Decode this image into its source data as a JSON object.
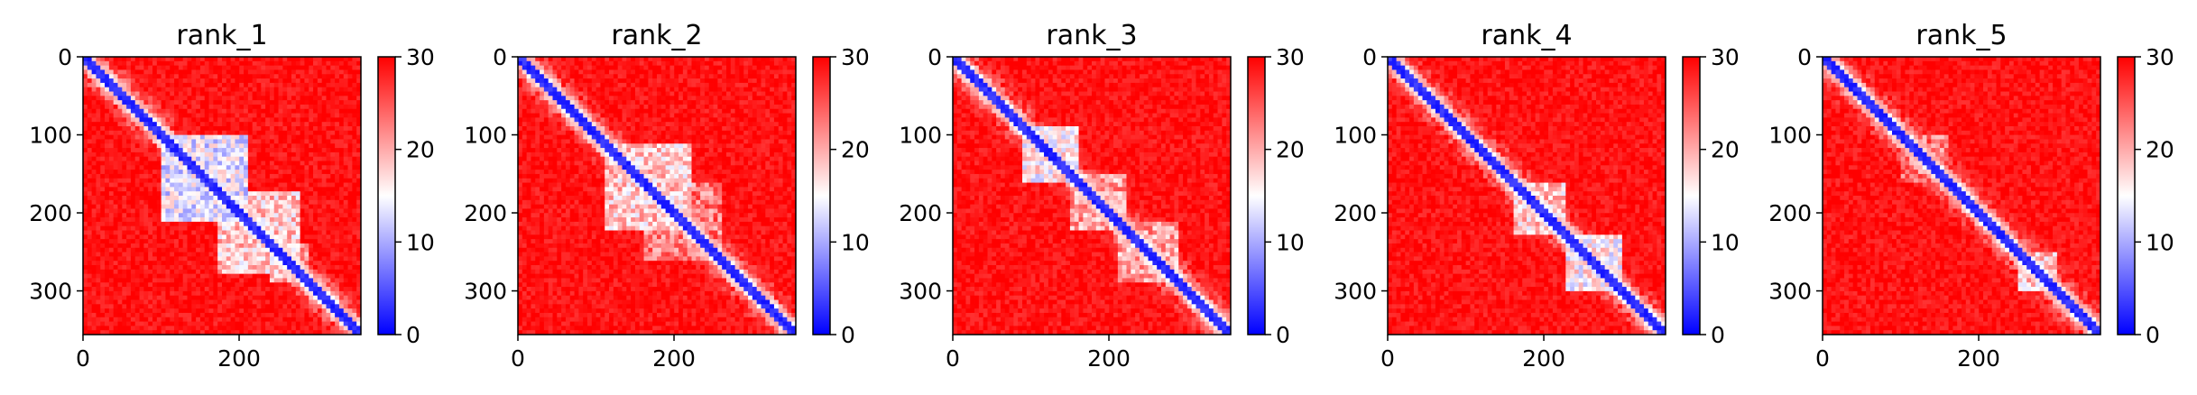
{
  "chart_data": [
    {
      "type": "heatmap",
      "title": "rank_1",
      "x_ticks": [
        0,
        200
      ],
      "y_ticks": [
        0,
        100,
        200,
        300
      ],
      "x_range": [
        0,
        356
      ],
      "y_range": [
        0,
        356
      ],
      "colorbar": {
        "range": [
          0,
          30
        ],
        "ticks": [
          0,
          10,
          20,
          30
        ],
        "colors": [
          "#0000ff",
          "#ffffff",
          "#ff0000"
        ]
      },
      "blue_regions": [
        [
          100,
          210,
          0.9
        ],
        [
          170,
          280,
          0.7
        ],
        [
          240,
          290,
          0.6
        ]
      ]
    },
    {
      "type": "heatmap",
      "title": "rank_2",
      "x_ticks": [
        0,
        200
      ],
      "y_ticks": [
        0,
        100,
        200,
        300
      ],
      "x_range": [
        0,
        356
      ],
      "y_range": [
        0,
        356
      ],
      "colorbar": {
        "range": [
          0,
          30
        ],
        "ticks": [
          0,
          10,
          20,
          30
        ],
        "colors": [
          "#0000ff",
          "#ffffff",
          "#ff0000"
        ]
      },
      "blue_regions": [
        [
          110,
          220,
          0.7
        ],
        [
          160,
          260,
          0.5
        ]
      ]
    },
    {
      "type": "heatmap",
      "title": "rank_3",
      "x_ticks": [
        0,
        200
      ],
      "y_ticks": [
        0,
        100,
        200,
        300
      ],
      "x_range": [
        0,
        356
      ],
      "y_range": [
        0,
        356
      ],
      "colorbar": {
        "range": [
          0,
          30
        ],
        "ticks": [
          0,
          10,
          20,
          30
        ],
        "colors": [
          "#0000ff",
          "#ffffff",
          "#ff0000"
        ]
      },
      "blue_regions": [
        [
          90,
          160,
          0.8
        ],
        [
          150,
          220,
          0.6
        ],
        [
          210,
          290,
          0.6
        ]
      ]
    },
    {
      "type": "heatmap",
      "title": "rank_4",
      "x_ticks": [
        0,
        200
      ],
      "y_ticks": [
        0,
        100,
        200,
        300
      ],
      "x_range": [
        0,
        356
      ],
      "y_range": [
        0,
        356
      ],
      "colorbar": {
        "range": [
          0,
          30
        ],
        "ticks": [
          0,
          10,
          20,
          30
        ],
        "colors": [
          "#0000ff",
          "#ffffff",
          "#ff0000"
        ]
      },
      "blue_regions": [
        [
          160,
          230,
          0.7
        ],
        [
          230,
          300,
          0.8
        ]
      ]
    },
    {
      "type": "heatmap",
      "title": "rank_5",
      "x_ticks": [
        0,
        200
      ],
      "y_ticks": [
        0,
        100,
        200,
        300
      ],
      "x_range": [
        0,
        356
      ],
      "y_range": [
        0,
        356
      ],
      "colorbar": {
        "range": [
          0,
          30
        ],
        "ticks": [
          0,
          10,
          20,
          30
        ],
        "colors": [
          "#0000ff",
          "#ffffff",
          "#ff0000"
        ]
      },
      "blue_regions": [
        [
          100,
          160,
          0.5
        ],
        [
          250,
          300,
          0.7
        ]
      ]
    }
  ]
}
